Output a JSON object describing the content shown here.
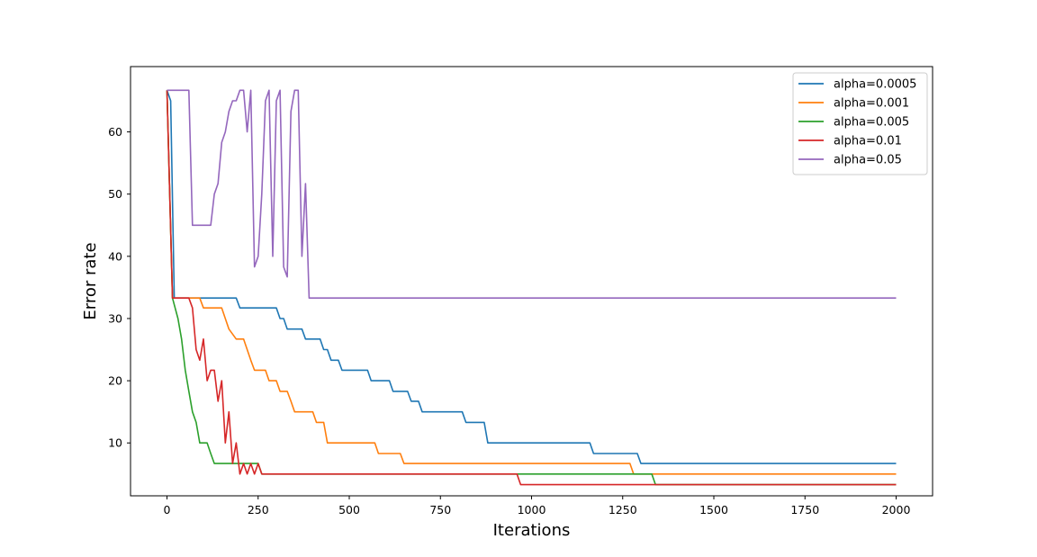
{
  "chart_data": {
    "type": "line",
    "title": "",
    "xlabel": "Iterations",
    "ylabel": "Error rate",
    "xlim": [
      -100,
      2100
    ],
    "ylim": [
      1.5,
      70.5
    ],
    "xticks": [
      0,
      250,
      500,
      750,
      1000,
      1250,
      1500,
      1750,
      2000
    ],
    "yticks": [
      10,
      20,
      30,
      40,
      50,
      60
    ],
    "grid": false,
    "legend_position": "top-right",
    "series": [
      {
        "name": "alpha=0.0005",
        "color": "#1f77b4",
        "points": [
          [
            0,
            66.7
          ],
          [
            10,
            65
          ],
          [
            20,
            33.3
          ],
          [
            190,
            33.3
          ],
          [
            200,
            31.7
          ],
          [
            300,
            31.7
          ],
          [
            310,
            30
          ],
          [
            320,
            30
          ],
          [
            330,
            28.3
          ],
          [
            370,
            28.3
          ],
          [
            380,
            26.7
          ],
          [
            420,
            26.7
          ],
          [
            430,
            25
          ],
          [
            440,
            25
          ],
          [
            450,
            23.3
          ],
          [
            470,
            23.3
          ],
          [
            480,
            21.7
          ],
          [
            550,
            21.7
          ],
          [
            560,
            20
          ],
          [
            610,
            20
          ],
          [
            620,
            18.3
          ],
          [
            660,
            18.3
          ],
          [
            670,
            16.7
          ],
          [
            690,
            16.7
          ],
          [
            700,
            15
          ],
          [
            810,
            15
          ],
          [
            820,
            13.3
          ],
          [
            870,
            13.3
          ],
          [
            880,
            10
          ],
          [
            1160,
            10
          ],
          [
            1170,
            8.3
          ],
          [
            1290,
            8.3
          ],
          [
            1300,
            6.7
          ],
          [
            2000,
            6.7
          ]
        ]
      },
      {
        "name": "alpha=0.001",
        "color": "#ff7f0e",
        "points": [
          [
            0,
            66.7
          ],
          [
            15,
            33.3
          ],
          [
            90,
            33.3
          ],
          [
            100,
            31.7
          ],
          [
            150,
            31.7
          ],
          [
            160,
            30
          ],
          [
            170,
            28.3
          ],
          [
            190,
            26.7
          ],
          [
            210,
            26.7
          ],
          [
            220,
            25
          ],
          [
            230,
            23.3
          ],
          [
            240,
            21.7
          ],
          [
            270,
            21.7
          ],
          [
            280,
            20
          ],
          [
            300,
            20
          ],
          [
            310,
            18.3
          ],
          [
            330,
            18.3
          ],
          [
            340,
            16.7
          ],
          [
            350,
            15
          ],
          [
            400,
            15
          ],
          [
            410,
            13.3
          ],
          [
            430,
            13.3
          ],
          [
            440,
            10
          ],
          [
            570,
            10
          ],
          [
            580,
            8.3
          ],
          [
            640,
            8.3
          ],
          [
            650,
            6.7
          ],
          [
            1270,
            6.7
          ],
          [
            1280,
            5
          ],
          [
            2000,
            5
          ]
        ]
      },
      {
        "name": "alpha=0.005",
        "color": "#2ca02c",
        "points": [
          [
            0,
            66.7
          ],
          [
            15,
            33.3
          ],
          [
            30,
            30
          ],
          [
            40,
            26.7
          ],
          [
            50,
            21.7
          ],
          [
            60,
            18.3
          ],
          [
            70,
            15
          ],
          [
            80,
            13.3
          ],
          [
            90,
            10
          ],
          [
            110,
            10
          ],
          [
            120,
            8.3
          ],
          [
            130,
            6.7
          ],
          [
            250,
            6.7
          ],
          [
            260,
            5
          ],
          [
            1330,
            5
          ],
          [
            1340,
            3.3
          ],
          [
            2000,
            3.3
          ]
        ]
      },
      {
        "name": "alpha=0.01",
        "color": "#d62728",
        "points": [
          [
            0,
            66.7
          ],
          [
            15,
            33.3
          ],
          [
            60,
            33.3
          ],
          [
            70,
            31.7
          ],
          [
            80,
            25
          ],
          [
            90,
            23.3
          ],
          [
            100,
            26.7
          ],
          [
            110,
            20
          ],
          [
            120,
            21.7
          ],
          [
            130,
            21.7
          ],
          [
            140,
            16.7
          ],
          [
            150,
            20
          ],
          [
            160,
            10
          ],
          [
            170,
            15
          ],
          [
            180,
            6.7
          ],
          [
            190,
            10
          ],
          [
            200,
            5
          ],
          [
            210,
            6.7
          ],
          [
            220,
            5
          ],
          [
            230,
            6.7
          ],
          [
            240,
            5
          ],
          [
            250,
            6.7
          ],
          [
            260,
            5
          ],
          [
            960,
            5
          ],
          [
            970,
            3.3
          ],
          [
            2000,
            3.3
          ]
        ]
      },
      {
        "name": "alpha=0.05",
        "color": "#9467bd",
        "points": [
          [
            0,
            66.7
          ],
          [
            60,
            66.7
          ],
          [
            70,
            45
          ],
          [
            120,
            45
          ],
          [
            130,
            50
          ],
          [
            140,
            51.7
          ],
          [
            150,
            58.3
          ],
          [
            160,
            60
          ],
          [
            170,
            63.3
          ],
          [
            180,
            65
          ],
          [
            190,
            65
          ],
          [
            200,
            66.7
          ],
          [
            210,
            66.7
          ],
          [
            220,
            60
          ],
          [
            230,
            66.7
          ],
          [
            240,
            38.3
          ],
          [
            250,
            40
          ],
          [
            260,
            50
          ],
          [
            270,
            65
          ],
          [
            280,
            66.7
          ],
          [
            290,
            40
          ],
          [
            300,
            65
          ],
          [
            310,
            66.7
          ],
          [
            320,
            38.3
          ],
          [
            330,
            36.7
          ],
          [
            340,
            63.3
          ],
          [
            350,
            66.7
          ],
          [
            360,
            66.7
          ],
          [
            370,
            40
          ],
          [
            380,
            51.7
          ],
          [
            390,
            33.3
          ],
          [
            2000,
            33.3
          ]
        ]
      }
    ]
  }
}
